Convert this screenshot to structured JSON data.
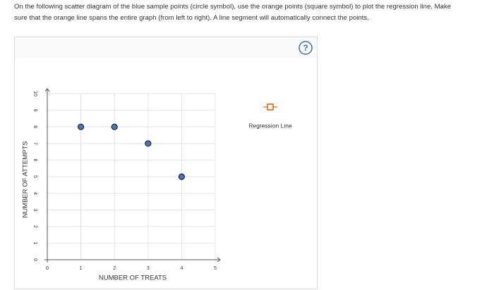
{
  "instructions": [
    "On the following scatter diagram of the blue sample points (circle symbol), use the orange points (square symbol) to plot the regression line. Make",
    "sure that the orange line spans the entire graph (from left to right). A line segment will automatically connect the points."
  ],
  "chart_data": {
    "type": "scatter",
    "x_label": "NUMBER OF TREATS",
    "y_label": "NUMBER OF ATTEMPTS",
    "x": [
      1,
      2,
      3,
      4
    ],
    "series": [
      {
        "color": "#3f7cb8",
        "values": [
          8,
          8,
          7,
          5
        ]
      },
      {
        "name": "Regression Line",
        "color": "#e8833a",
        "values": []
      }
    ],
    "xlim": [
      0,
      5
    ],
    "xticks": [
      0,
      1,
      2,
      3,
      4,
      5
    ],
    "ylim": [
      0,
      10
    ],
    "yticks": [
      0,
      1,
      2,
      3,
      4,
      5,
      6,
      7,
      8,
      9,
      10
    ],
    "grid": true
  }
}
